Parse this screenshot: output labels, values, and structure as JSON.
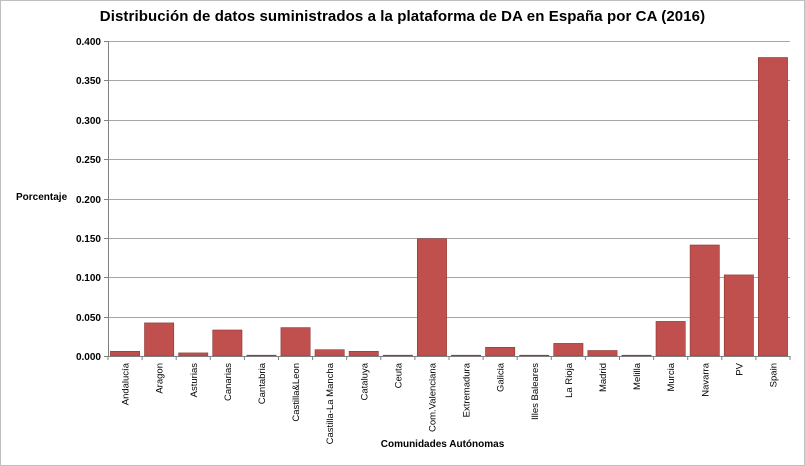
{
  "chart_data": {
    "type": "bar",
    "title": "Distribución de datos suministrados a la plataforma de DA en España por CA (2016)",
    "xlabel": "Comunidades Autónomas",
    "ylabel": "Porcentaje",
    "ylim": [
      0,
      0.4
    ],
    "yticks": [
      "0.000",
      "0.050",
      "0.100",
      "0.150",
      "0.200",
      "0.250",
      "0.300",
      "0.350",
      "0.400"
    ],
    "grid": true,
    "bar_color": "#c0504d",
    "categories": [
      "Andalucía",
      "Aragon",
      "Asturias",
      "Canarias",
      "Cantabria",
      "Castilla&Leon",
      "Castilla-La Mancha",
      "Cataluya",
      "Ceuta",
      "Com.Valenciana",
      "Extremadura",
      "Galicia",
      "Illes Baleares",
      "La Rioja",
      "Madrid",
      "Melilla",
      "Murcia",
      "Navarra",
      "PV",
      "Spain"
    ],
    "values": [
      0.006,
      0.042,
      0.004,
      0.033,
      0.001,
      0.036,
      0.008,
      0.006,
      0.001,
      0.149,
      0.001,
      0.011,
      0.001,
      0.016,
      0.007,
      0.001,
      0.044,
      0.141,
      0.103,
      0.379
    ]
  }
}
